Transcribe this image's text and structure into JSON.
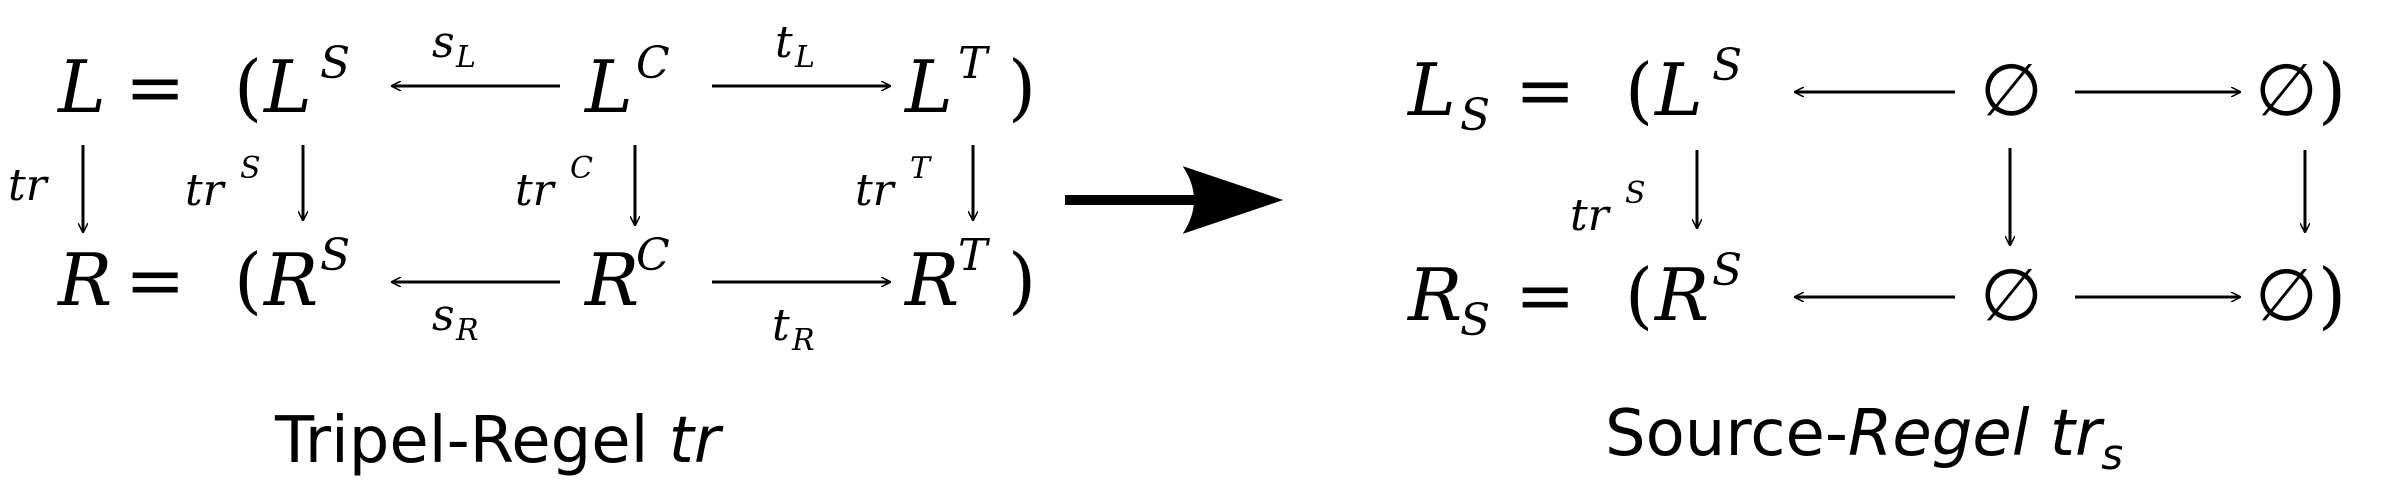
{
  "left": {
    "top_row": {
      "lhs": "L",
      "equals": "=",
      "open_paren": "(",
      "source_base": "L",
      "source_sup": "S",
      "corr_base": "L",
      "corr_sup": "C",
      "target_base": "L",
      "target_sup": "T",
      "close_paren": ")"
    },
    "bottom_row": {
      "lhs": "R",
      "equals": "=",
      "open_paren": "(",
      "source_base": "R",
      "source_sup": "S",
      "corr_base": "R",
      "corr_sup": "C",
      "target_base": "R",
      "target_sup": "T",
      "close_paren": ")"
    },
    "morphisms": {
      "s_L_base": "s",
      "s_L_sub": "L",
      "t_L_base": "t",
      "t_L_sub": "L",
      "s_R_base": "s",
      "s_R_sub": "R",
      "t_R_base": "t",
      "t_R_sub": "R"
    },
    "vertical_labels": {
      "tr": "tr",
      "trS_base": "tr",
      "trS_sup": "S",
      "trC_base": "tr",
      "trC_sup": "C",
      "trT_base": "tr",
      "trT_sup": "T"
    },
    "caption": {
      "text": "Tripel-Regel ",
      "italic": "tr"
    }
  },
  "right": {
    "top_row": {
      "lhs_base": "L",
      "lhs_sub": "S",
      "equals": "=",
      "open_paren": "(",
      "source_base": "L",
      "source_sup": "S",
      "corr": "∅",
      "target": "∅",
      "close_paren": ")"
    },
    "bottom_row": {
      "lhs_base": "R",
      "lhs_sub": "S",
      "equals": "=",
      "open_paren": "(",
      "source_base": "R",
      "source_sup": "S",
      "corr": "∅",
      "target": "∅",
      "close_paren": ")"
    },
    "vertical_labels": {
      "trS_base": "tr",
      "trS_sup": "S"
    },
    "caption": {
      "text": "Source-",
      "italic": "Regel tr",
      "italic_sub": "s"
    }
  }
}
